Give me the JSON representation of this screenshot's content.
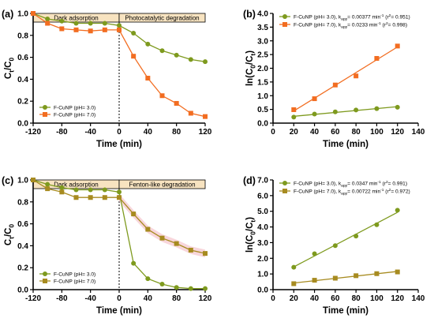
{
  "colors": {
    "olive": "#7e9a1e",
    "orange": "#f26d21",
    "gold": "#a78b20",
    "band": "#f7e3c0",
    "pink_shade": "#f5c8cf"
  },
  "chart_data": [
    {
      "panel": "(a)",
      "type": "line",
      "xlabel": "Time (min)",
      "ylabel": "Ct/C0",
      "xlim": [
        -120,
        120
      ],
      "ylim": [
        0,
        1.0
      ],
      "xticks": [
        "-120",
        "-80",
        "-40",
        "0",
        "40",
        "80",
        "120"
      ],
      "yticks": [
        "0.0",
        "0.2",
        "0.4",
        "0.6",
        "0.8",
        "1.0"
      ],
      "stage_labels": [
        "Dark adsorption",
        "Photocatalytic degradation"
      ],
      "legend_position": "bottom-left",
      "series": [
        {
          "name": "F-CuNP (pH= 3.0)",
          "color": "#7e9a1e",
          "marker": "circle",
          "x": [
            -120,
            -100,
            -80,
            -60,
            -40,
            -20,
            0,
            20,
            40,
            60,
            80,
            100,
            120
          ],
          "y": [
            1.0,
            0.95,
            0.93,
            0.91,
            0.91,
            0.91,
            0.89,
            0.82,
            0.72,
            0.66,
            0.62,
            0.58,
            0.56
          ]
        },
        {
          "name": "F-CuNP (pH= 7.0)",
          "color": "#f26d21",
          "marker": "square",
          "x": [
            -120,
            -100,
            -80,
            -60,
            -40,
            -20,
            0,
            20,
            40,
            60,
            80,
            100,
            120
          ],
          "y": [
            1.0,
            0.91,
            0.86,
            0.85,
            0.84,
            0.85,
            0.85,
            0.61,
            0.41,
            0.25,
            0.18,
            0.09,
            0.06
          ]
        }
      ]
    },
    {
      "panel": "(b)",
      "type": "scatter",
      "xlabel": "Time (min)",
      "ylabel": "ln(C0/Ct)",
      "xlim": [
        0,
        140
      ],
      "ylim": [
        0,
        4.0
      ],
      "xticks": [
        "0",
        "20",
        "40",
        "60",
        "80",
        "100",
        "120",
        "140"
      ],
      "yticks": [
        "0.0",
        "0.5",
        "1.0",
        "1.5",
        "2.0",
        "2.5",
        "3.0",
        "3.5",
        "4.0"
      ],
      "legend_position": "top-left",
      "series": [
        {
          "name": "F-CuNP (pH= 3.0), kapp= 0.00377 min-1 (r2= 0.951)",
          "color": "#7e9a1e",
          "marker": "circle",
          "x": [
            20,
            40,
            60,
            80,
            100,
            120
          ],
          "y": [
            0.22,
            0.33,
            0.41,
            0.48,
            0.53,
            0.58
          ]
        },
        {
          "name": "F-CuNP (pH= 7.0), kapp= 0.0233 min-1 (r2= 0.998)",
          "color": "#f26d21",
          "marker": "square",
          "x": [
            20,
            40,
            60,
            80,
            100,
            120
          ],
          "y": [
            0.49,
            0.89,
            1.39,
            1.72,
            2.36,
            2.81
          ]
        }
      ]
    },
    {
      "panel": "(c)",
      "type": "line",
      "xlabel": "Time (min)",
      "ylabel": "Ct/C0",
      "xlim": [
        -120,
        120
      ],
      "ylim": [
        0,
        1.0
      ],
      "xticks": [
        "-120",
        "-80",
        "-40",
        "0",
        "40",
        "80",
        "120"
      ],
      "yticks": [
        "0.0",
        "0.2",
        "0.4",
        "0.6",
        "0.8",
        "1.0"
      ],
      "stage_labels": [
        "Dark adsorption",
        "Fenton-like degradation"
      ],
      "legend_position": "bottom-left",
      "series": [
        {
          "name": "F-CuNP (pH= 3.0)",
          "color": "#7e9a1e",
          "marker": "circle",
          "x": [
            -120,
            -100,
            -80,
            -60,
            -40,
            -20,
            0,
            20,
            40,
            60,
            80,
            100,
            120
          ],
          "y": [
            1.0,
            0.96,
            0.93,
            0.91,
            0.91,
            0.91,
            0.89,
            0.24,
            0.1,
            0.05,
            0.02,
            0.01,
            0.01
          ]
        },
        {
          "name": "F-CuNP (pH= 7.0)",
          "color": "#a78b20",
          "marker": "square",
          "x": [
            -120,
            -100,
            -80,
            -60,
            -40,
            -20,
            0,
            20,
            40,
            60,
            80,
            100,
            120
          ],
          "y": [
            1.0,
            0.92,
            0.89,
            0.84,
            0.84,
            0.84,
            0.84,
            0.69,
            0.55,
            0.47,
            0.42,
            0.36,
            0.33
          ]
        }
      ]
    },
    {
      "panel": "(d)",
      "type": "scatter",
      "xlabel": "Time (min)",
      "ylabel": "ln(C0/Ct)",
      "xlim": [
        0,
        140
      ],
      "ylim": [
        0,
        7.0
      ],
      "xticks": [
        "0",
        "20",
        "40",
        "60",
        "80",
        "100",
        "120",
        "140"
      ],
      "yticks": [
        "0.0",
        "1.0",
        "2.0",
        "3.0",
        "4.0",
        "5.0",
        "6.0",
        "7.0"
      ],
      "legend_position": "top-left",
      "series": [
        {
          "name": "F-CuNP (pH= 3.0), kapp= 0.0347 min-1 (r2= 0.991)",
          "color": "#7e9a1e",
          "marker": "circle",
          "x": [
            20,
            40,
            60,
            80,
            100,
            120
          ],
          "y": [
            1.43,
            2.29,
            2.81,
            3.42,
            4.14,
            5.07
          ]
        },
        {
          "name": "F-CuNP (pH= 7.0), kapp= 0.00722 min-1 (r2= 0.972)",
          "color": "#a78b20",
          "marker": "square",
          "x": [
            20,
            40,
            60,
            80,
            100,
            120
          ],
          "y": [
            0.38,
            0.6,
            0.73,
            0.89,
            1.02,
            1.13
          ]
        }
      ]
    }
  ]
}
